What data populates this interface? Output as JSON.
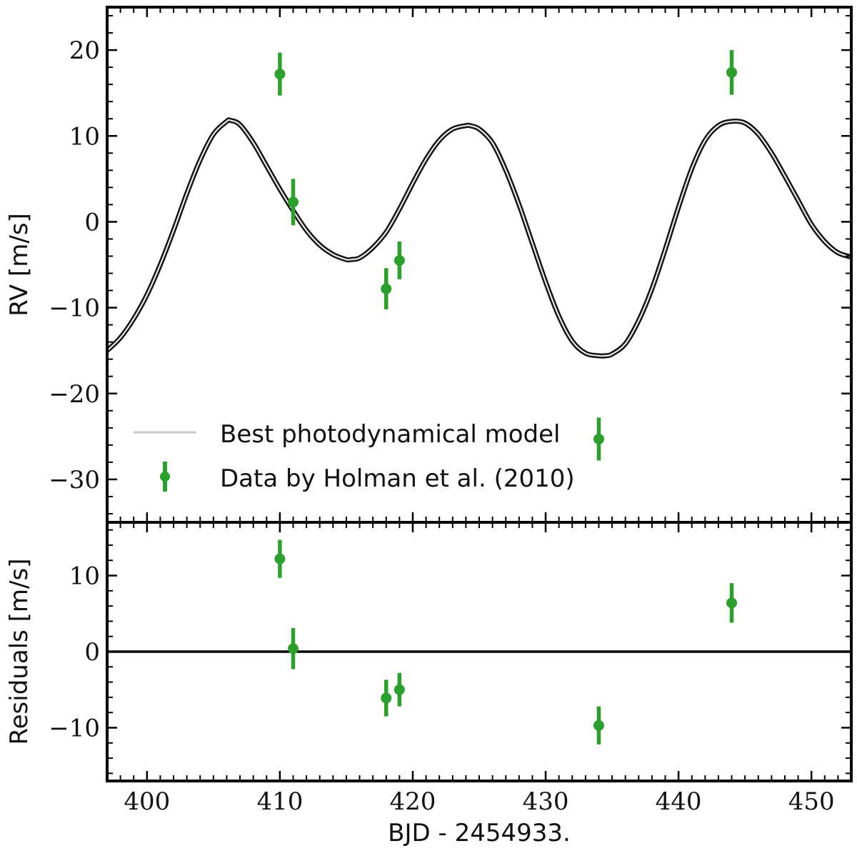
{
  "chart_data": [
    {
      "type": "line",
      "panel": "top",
      "xlabel": "",
      "ylabel": "RV [m/s]",
      "xlim": [
        397,
        453
      ],
      "ylim": [
        -35,
        25
      ],
      "yticks": [
        20,
        10,
        0,
        -10,
        -20,
        -30
      ],
      "ytick_labels": [
        "20",
        "10",
        "0",
        "−10",
        "−20",
        "−30"
      ],
      "legend": {
        "position": "lower-left",
        "model_label": "Best photodynamical model",
        "data_label": "Data by Holman et al. (2010)"
      },
      "model": {
        "name": "Best photodynamical model",
        "color": "#000000",
        "x": [
          397,
          398,
          399,
          400,
          401,
          402,
          403,
          404,
          405,
          406,
          406.3,
          407,
          408,
          409,
          410,
          411,
          412,
          413,
          414,
          415,
          415.3,
          416,
          417,
          418,
          419,
          420,
          421,
          422,
          423,
          424,
          424.3,
          425,
          426,
          427,
          428,
          429,
          430,
          431,
          432,
          433,
          434,
          434.5,
          435,
          436,
          437,
          438,
          439,
          440,
          441,
          442,
          443,
          444,
          445,
          446,
          447,
          448,
          449,
          450,
          451,
          452,
          453
        ],
        "y": [
          -15,
          -13.5,
          -11.3,
          -8.5,
          -5,
          -1,
          3.3,
          7.2,
          10.2,
          11.7,
          11.8,
          11.3,
          9.2,
          6.5,
          3.8,
          1.3,
          -1,
          -2.7,
          -3.8,
          -4.4,
          -4.4,
          -4.2,
          -3,
          -1.2,
          1.5,
          4.5,
          7.3,
          9.5,
          10.8,
          11.2,
          11.2,
          10.8,
          9.2,
          6,
          2,
          -2.5,
          -7,
          -11,
          -13.9,
          -15.3,
          -15.6,
          -15.6,
          -15.4,
          -14.2,
          -11.5,
          -7.8,
          -3.2,
          1.7,
          6.2,
          9.5,
          11.2,
          11.7,
          11.5,
          10.2,
          8,
          5.3,
          2.5,
          -0.3,
          -2.3,
          -3.6,
          -4.1
        ]
      },
      "series": [
        {
          "name": "Data by Holman et al. (2010)",
          "color": "#2ca02c",
          "x": [
            410,
            411,
            418,
            419,
            434,
            444
          ],
          "y": [
            17.2,
            2.3,
            -7.8,
            -4.5,
            -25.3,
            17.4
          ],
          "yerr": [
            2.5,
            2.7,
            2.4,
            2.2,
            2.5,
            2.6
          ]
        }
      ]
    },
    {
      "type": "scatter",
      "panel": "bottom",
      "xlabel": "BJD - 2454933.",
      "ylabel": "Residuals [m/s]",
      "xlim": [
        397,
        453
      ],
      "ylim": [
        -17,
        17
      ],
      "xticks": [
        400,
        410,
        420,
        430,
        440,
        450
      ],
      "xtick_labels": [
        "400",
        "410",
        "420",
        "430",
        "440",
        "450"
      ],
      "yticks": [
        10,
        0,
        -10
      ],
      "ytick_labels": [
        "10",
        "0",
        "−10"
      ],
      "reference_line": 0,
      "series": [
        {
          "name": "Residuals",
          "color": "#2ca02c",
          "x": [
            410,
            411,
            418,
            419,
            434,
            444
          ],
          "y": [
            12.2,
            0.4,
            -6.1,
            -5.0,
            -9.7,
            6.4
          ],
          "yerr": [
            2.5,
            2.7,
            2.4,
            2.2,
            2.5,
            2.6
          ]
        }
      ]
    }
  ]
}
